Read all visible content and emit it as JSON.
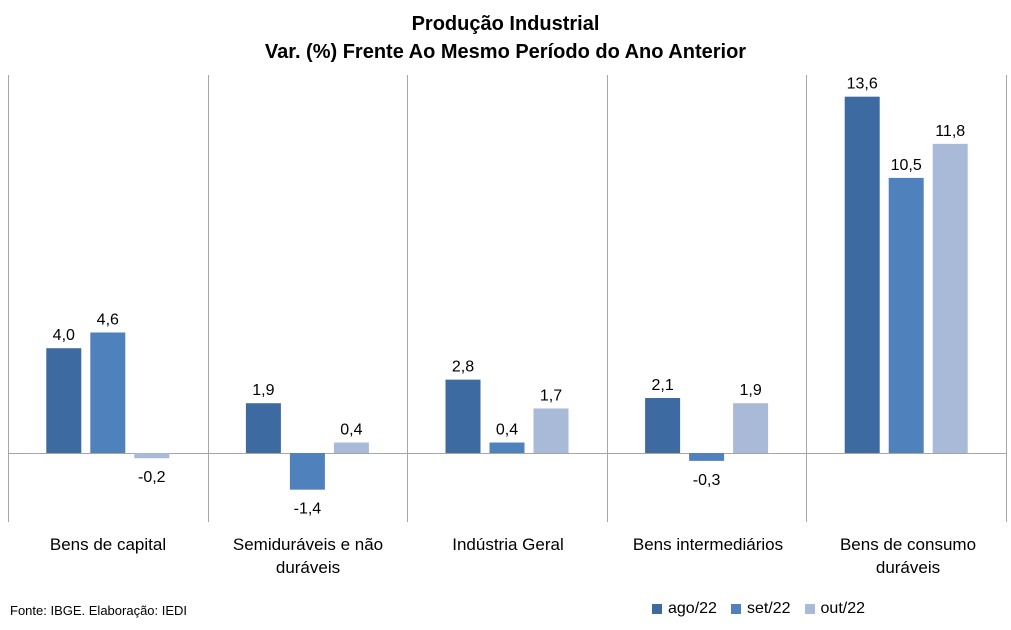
{
  "chart_data": {
    "type": "bar",
    "title": "Produção Industrial",
    "subtitle": "Var. (%) Frente Ao Mesmo Período do Ano Anterior",
    "categories": [
      "Bens de capital",
      "Semiduráveis e não duráveis",
      "Indústria Geral",
      "Bens intermediários",
      "Bens de consumo duráveis"
    ],
    "series": [
      {
        "name": "ago/22",
        "color": "#3d6aa0",
        "values": [
          4.0,
          1.9,
          2.8,
          2.1,
          13.6
        ]
      },
      {
        "name": "set/22",
        "color": "#4f81bd",
        "values": [
          4.6,
          -1.4,
          0.4,
          -0.3,
          10.5
        ]
      },
      {
        "name": "out/22",
        "color": "#a9b9d8",
        "values": [
          -0.2,
          0.4,
          1.7,
          1.9,
          11.8
        ]
      }
    ],
    "data_labels": [
      [
        "4,0",
        "4,6",
        "-0,2"
      ],
      [
        "1,9",
        "-1,4",
        "0,4"
      ],
      [
        "2,8",
        "0,4",
        "1,7"
      ],
      [
        "2,1",
        "-0,3",
        "1,9"
      ],
      [
        "13,6",
        "10,5",
        "11,8"
      ]
    ],
    "ylim": [
      -2.5,
      14.5
    ],
    "grid": false,
    "legend_position": "bottom-right"
  },
  "source_note": "Fonte: IBGE. Elaboração: IEDI"
}
